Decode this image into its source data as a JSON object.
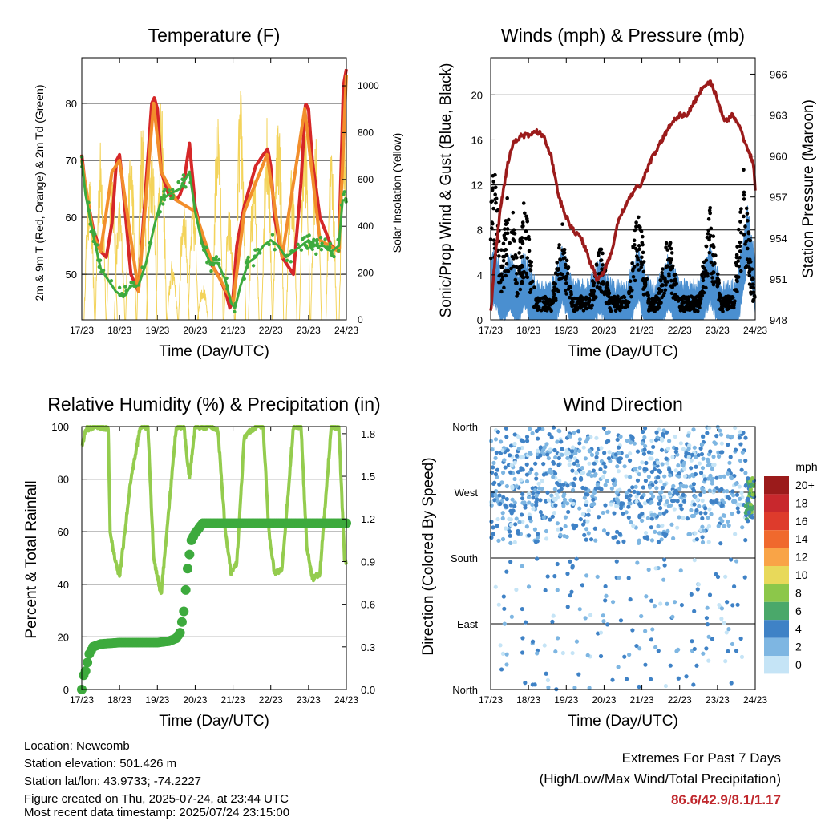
{
  "chart_data": [
    {
      "type": "line",
      "title": "Temperature (F)",
      "xlabel": "Time (Day/UTC)",
      "ylabel": "2m & 9m T (Red, Orange) & 2m Td (Green)",
      "ylabel_right": "Solar Insolation (Yellow)",
      "x_ticks": [
        "17/23",
        "18/23",
        "19/23",
        "20/23",
        "21/23",
        "22/23",
        "23/23",
        "24/23"
      ],
      "y_ticks": [
        50,
        60,
        70,
        80
      ],
      "y_ticks_right": [
        0,
        200,
        400,
        600,
        800,
        1000
      ],
      "ylim": [
        42,
        88
      ],
      "ylim_right": [
        0,
        1120
      ],
      "grid": "horizontal",
      "series": [
        {
          "name": "2m T",
          "color": "#d62728",
          "x": [
            0,
            0.1,
            0.3,
            0.5,
            0.65,
            0.8,
            0.92,
            1,
            1.08,
            1.3,
            1.5,
            1.7,
            1.85,
            1.92,
            2,
            2.1,
            2.3,
            2.5,
            2.6,
            2.7,
            2.85,
            3,
            3.2,
            3.4,
            3.6,
            3.8,
            3.92,
            4,
            4.1,
            4.3,
            4.6,
            4.8,
            4.92,
            5,
            5.1,
            5.3,
            5.6,
            5.8,
            5.92,
            6,
            6.1,
            6.3,
            6.6,
            6.8,
            6.92,
            7
          ],
          "y": [
            71,
            65,
            58,
            54,
            53,
            59,
            70,
            71,
            66,
            50,
            47,
            66,
            80,
            81,
            79,
            68,
            64,
            63,
            64,
            66,
            73,
            62,
            56,
            52,
            50,
            47,
            44,
            46,
            55,
            62,
            69,
            71,
            72,
            69,
            60,
            53,
            50,
            66,
            80,
            79,
            70,
            60,
            55,
            54,
            83,
            86
          ]
        },
        {
          "name": "9m T",
          "color": "#f28e2b",
          "x": [
            0,
            0.3,
            0.5,
            0.8,
            1,
            1.5,
            1.9,
            2.1,
            2.5,
            3,
            3.5,
            4,
            4.3,
            4.9,
            5.3,
            5.9,
            6.3,
            6.8,
            7
          ],
          "y": [
            70,
            57,
            54,
            68,
            70,
            47,
            80,
            68,
            63,
            61,
            51,
            45,
            61,
            71,
            53,
            79,
            56,
            54,
            85
          ]
        },
        {
          "name": "2m Td",
          "color": "#3daa3d",
          "x": [
            0,
            0.1,
            0.3,
            0.5,
            0.7,
            0.9,
            1.1,
            1.3,
            1.5,
            1.7,
            1.9,
            2.1,
            2.3,
            2.6,
            2.85,
            3,
            3.2,
            3.4,
            3.6,
            3.8,
            3.95,
            4.05,
            4.2,
            4.4,
            4.6,
            4.8,
            5,
            5.2,
            5.4,
            5.6,
            5.8,
            6,
            6.2,
            6.4,
            6.6,
            6.8,
            6.9,
            7
          ],
          "y": [
            70,
            64,
            57,
            51,
            49,
            47,
            46,
            48,
            48,
            52,
            58,
            63,
            64,
            65,
            68,
            61,
            55,
            52,
            52,
            49,
            45,
            44,
            48,
            52,
            53,
            55,
            56,
            55,
            53,
            54,
            55,
            56,
            55,
            55,
            54,
            55,
            63,
            63
          ]
        }
      ],
      "series_right": [
        {
          "name": "Solar Insolation",
          "color": "#f3d35a",
          "x": [
            0.2,
            0.5,
            0.8,
            1,
            1.3,
            1.6,
            1.85,
            2.1,
            2.4,
            2.7,
            2.95,
            3.2,
            3.6,
            3.9,
            4.2,
            4.55,
            4.9,
            5.2,
            5.55,
            5.9,
            6.2,
            6.6,
            6.95
          ],
          "peaks": [
            620,
            780,
            700,
            520,
            760,
            860,
            820,
            940,
            260,
            540,
            520,
            160,
            940,
            480,
            1000,
            660,
            880,
            940,
            700,
            900,
            820,
            760,
            900
          ]
        }
      ]
    },
    {
      "type": "scatter",
      "title": "Winds (mph) & Pressure (mb)",
      "xlabel": "Time (Day/UTC)",
      "ylabel": "Sonic/Prop Wind & Gust (Blue, Black)",
      "ylabel_right": "Station Pressure (Maroon)",
      "x_ticks": [
        "17/23",
        "18/23",
        "19/23",
        "20/23",
        "21/23",
        "22/23",
        "23/23",
        "24/23"
      ],
      "y_ticks": [
        0,
        4,
        8,
        12,
        16,
        20
      ],
      "y_ticks_right": [
        948,
        951,
        954,
        957,
        960,
        963,
        966
      ],
      "ylim": [
        0,
        23.3
      ],
      "ylim_right": [
        948,
        967.2
      ],
      "grid": "horizontal",
      "series": [
        {
          "name": "Station Pressure",
          "color": "#9b1b1b",
          "type": "line",
          "x": [
            0,
            0.1,
            0.25,
            0.45,
            0.6,
            0.8,
            1,
            1.2,
            1.4,
            1.6,
            1.8,
            2,
            2.2,
            2.4,
            2.6,
            2.8,
            3,
            3.2,
            3.4,
            3.6,
            3.8,
            4,
            4.2,
            4.5,
            4.8,
            5,
            5.2,
            5.4,
            5.6,
            5.8,
            5.95,
            6.2,
            6.4,
            6.6,
            6.8,
            6.95,
            7
          ],
          "y": [
            948.5,
            952,
            956,
            959.5,
            961,
            961.5,
            961.5,
            961.8,
            961.5,
            960,
            957,
            955.5,
            954.5,
            954,
            952.5,
            951,
            951.5,
            953,
            955.5,
            956.5,
            957.5,
            958,
            959.5,
            961,
            962.5,
            963,
            963,
            964,
            965,
            965.5,
            964.5,
            962.5,
            963,
            962,
            960.5,
            959.5,
            957.5
          ]
        },
        {
          "name": "Wind Gust",
          "color": "#000000",
          "type": "scatter",
          "bursts": [
            [
              0.1,
              9
            ],
            [
              0.5,
              8
            ],
            [
              0.9,
              6.5
            ],
            [
              1.9,
              5
            ],
            [
              2.9,
              3.5
            ],
            [
              3.9,
              6.5
            ],
            [
              4.7,
              4.5
            ],
            [
              5.8,
              6
            ],
            [
              6.7,
              9
            ]
          ]
        },
        {
          "name": "Wind Speed",
          "color": "#4a8fd0",
          "type": "area",
          "bursts": [
            [
              0.1,
              3
            ],
            [
              0.5,
              2.5
            ],
            [
              0.9,
              2.5
            ],
            [
              1.9,
              3
            ],
            [
              2.9,
              2
            ],
            [
              3.9,
              3
            ],
            [
              4.7,
              2.5
            ],
            [
              5.8,
              3
            ],
            [
              6.8,
              6.5
            ]
          ]
        }
      ]
    },
    {
      "type": "line",
      "title": "Relative Humidity (%) & Precipitation (in)",
      "xlabel": "Time (Day/UTC)",
      "ylabel": "Percent & Total Rainfall",
      "x_ticks": [
        "17/23",
        "18/23",
        "19/23",
        "20/23",
        "21/23",
        "22/23",
        "23/23",
        "24/23"
      ],
      "y_ticks": [
        0,
        20,
        40,
        60,
        80,
        100
      ],
      "y_ticks_right": [
        "0.0",
        "0.3",
        "0.6",
        "0.9",
        "1.2",
        "1.5",
        "1.8"
      ],
      "ylim": [
        0,
        100
      ],
      "ylim_right": [
        0,
        1.85
      ],
      "grid": "horizontal",
      "series": [
        {
          "name": "Relative Humidity",
          "color": "#94cc4e",
          "x": [
            0,
            0.1,
            0.4,
            0.7,
            0.75,
            0.9,
            1,
            1.1,
            1.3,
            1.55,
            1.75,
            1.9,
            2.1,
            2.25,
            2.5,
            2.7,
            2.85,
            3,
            3.3,
            3.6,
            3.8,
            3.95,
            4.1,
            4.3,
            4.6,
            4.8,
            4.95,
            5.1,
            5.3,
            5.6,
            5.8,
            5.95,
            6.1,
            6.3,
            6.6,
            6.8,
            6.95,
            7
          ],
          "y": [
            92,
            99,
            100,
            99,
            60,
            48,
            43,
            55,
            80,
            100,
            100,
            50,
            36,
            60,
            100,
            100,
            80,
            100,
            100,
            99,
            60,
            44,
            48,
            96,
            100,
            100,
            60,
            44,
            46,
            100,
            100,
            55,
            42,
            44,
            100,
            100,
            50,
            47
          ]
        },
        {
          "name": "Total Precipitation",
          "color": "#3daa3d",
          "axis": "right",
          "x": [
            0,
            0.05,
            0.1,
            0.2,
            0.3,
            0.5,
            1,
            1.5,
            2,
            2.3,
            2.5,
            2.6,
            2.7,
            2.75,
            2.8,
            2.85,
            2.9,
            3.0,
            3.2,
            3.5,
            4,
            5,
            6,
            7
          ],
          "y": [
            0,
            0.1,
            0.13,
            0.25,
            0.3,
            0.32,
            0.33,
            0.33,
            0.33,
            0.34,
            0.36,
            0.4,
            0.55,
            0.7,
            0.85,
            0.95,
            1.05,
            1.1,
            1.17,
            1.17,
            1.17,
            1.17,
            1.17,
            1.17
          ]
        }
      ]
    },
    {
      "type": "scatter",
      "title": "Wind Direction",
      "xlabel": "Time (Day/UTC)",
      "ylabel": "Direction (Colored By Speed)",
      "x_ticks": [
        "17/23",
        "18/23",
        "19/23",
        "20/23",
        "21/23",
        "22/23",
        "23/23",
        "24/23"
      ],
      "y_ticks": [
        "North",
        "East",
        "South",
        "West",
        "North"
      ],
      "ylim": [
        0,
        360
      ],
      "grid": "horizontal",
      "legend": {
        "title": "mph",
        "position": "right",
        "labels": [
          "20+",
          "18",
          "16",
          "14",
          "12",
          "10",
          "8",
          "6",
          "4",
          "2",
          "0"
        ],
        "colors": [
          "#9b1b1b",
          "#c8282d",
          "#de3b2c",
          "#f0692d",
          "#f9a447",
          "#e8d95a",
          "#8cc74a",
          "#4aa86a",
          "#3f82c6",
          "#7eb6e2",
          "#c5e4f6"
        ]
      }
    }
  ],
  "footer": {
    "location": "Location: Newcomb",
    "elevation": "Station elevation: 501.426 m",
    "latlon": "Station lat/lon: 43.9733; -74.2227",
    "created": "Figure created on Thu, 2025-07-24, at 23:44 UTC",
    "recent": "Most recent data timestamp: 2025/07/24 23:15:00"
  },
  "extremes": {
    "title": "Extremes For Past 7 Days",
    "subtitle": "(High/Low/Max Wind/Total Precipitation)",
    "values": "86.6/42.9/8.1/1.17"
  }
}
